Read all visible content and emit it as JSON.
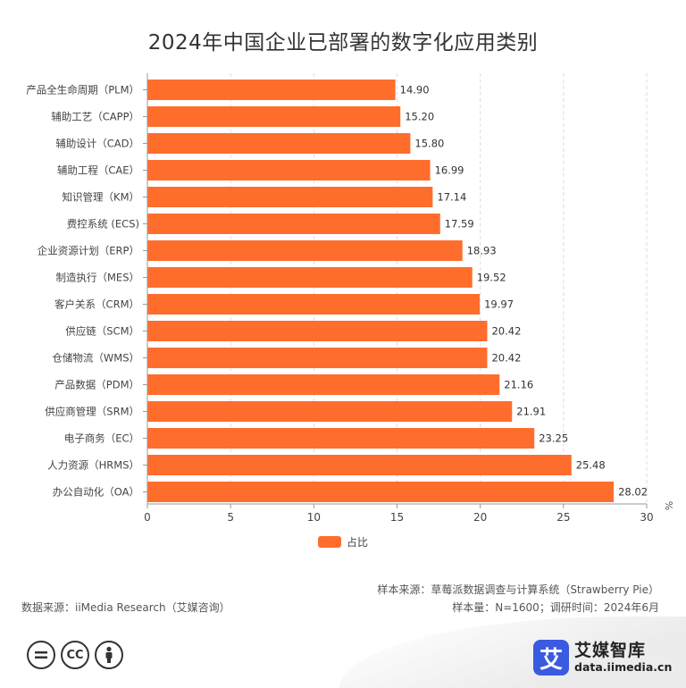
{
  "chart_data": {
    "type": "bar",
    "orientation": "horizontal",
    "title": "2024年中国企业已部署的数字化应用类别",
    "unit": "%",
    "categories": [
      "产品全生命周期（PLM）",
      "辅助工艺（CAPP）",
      "辅助设计（CAD）",
      "辅助工程（CAE）",
      "知识管理（KM）",
      "费控系统 (ECS)",
      "企业资源计划（ERP）",
      "制造执行（MES）",
      "客户关系（CRM）",
      "供应链（SCM）",
      "仓储物流（WMS）",
      "产品数据（PDM）",
      "供应商管理（SRM）",
      "电子商务（EC）",
      "人力资源（HRMS）",
      "办公自动化（OA）"
    ],
    "series": [
      {
        "name": "占比",
        "color": "#FF6D2D",
        "values": [
          14.9,
          15.2,
          15.8,
          16.99,
          17.14,
          17.59,
          18.93,
          19.52,
          19.97,
          20.42,
          20.42,
          21.16,
          21.91,
          23.25,
          25.48,
          28.02
        ],
        "labels": [
          "14.90",
          "15.20",
          "15.80",
          "16.99",
          "17.14",
          "17.59",
          "18.93",
          "19.52",
          "19.97",
          "20.42",
          "20.42",
          "21.16",
          "21.91",
          "23.25",
          "25.48",
          "28.02"
        ]
      }
    ],
    "xlim": [
      0,
      30
    ],
    "xticks": [
      "0",
      "5",
      "10",
      "15",
      "20",
      "25",
      "30"
    ],
    "grid": "vertical-dashed",
    "legend": "bottom-center"
  },
  "footer": {
    "sample_source": "样本来源：草莓派数据调查与计算系统（Strawberry Pie）",
    "sample_size": "样本量：N=1600；调研时间：2024年6月",
    "data_source": "数据来源：iiMedia Research（艾媒咨询）"
  },
  "logo": {
    "mark": "艾",
    "name": "艾媒智库",
    "url": "data.iimedia.cn"
  },
  "license": {
    "icons": [
      "equal-icon",
      "cc-icon",
      "person-icon"
    ],
    "cc_text": "CC"
  }
}
